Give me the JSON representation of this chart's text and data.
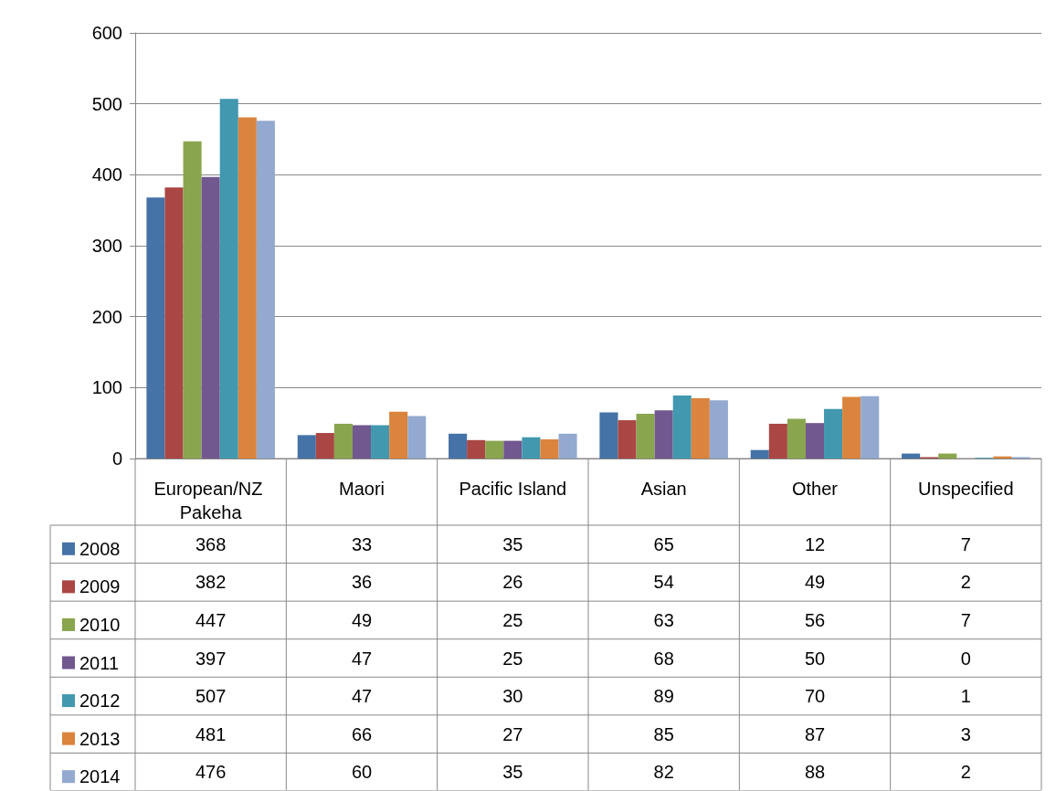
{
  "chart_data": {
    "type": "bar",
    "categories": [
      "European/NZ Pakeha",
      "Maori",
      "Pacific Island",
      "Asian",
      "Other",
      "Unspecified"
    ],
    "series": [
      {
        "name": "2008",
        "color": "#4572a7",
        "values": [
          368,
          33,
          35,
          65,
          12,
          7
        ]
      },
      {
        "name": "2009",
        "color": "#aa4643",
        "values": [
          382,
          36,
          26,
          54,
          49,
          2
        ]
      },
      {
        "name": "2010",
        "color": "#89a54e",
        "values": [
          447,
          49,
          25,
          63,
          56,
          7
        ]
      },
      {
        "name": "2011",
        "color": "#71588f",
        "values": [
          397,
          47,
          25,
          68,
          50,
          0
        ]
      },
      {
        "name": "2012",
        "color": "#4198af",
        "values": [
          507,
          47,
          30,
          89,
          70,
          1
        ]
      },
      {
        "name": "2013",
        "color": "#db843d",
        "values": [
          481,
          66,
          27,
          85,
          87,
          3
        ]
      },
      {
        "name": "2014",
        "color": "#93a9cf",
        "values": [
          476,
          60,
          35,
          82,
          88,
          2
        ]
      }
    ],
    "ylim": [
      0,
      600
    ],
    "yticks": [
      0,
      100,
      200,
      300,
      400,
      500,
      600
    ],
    "grid": "y",
    "legend": "bottom left",
    "data_labels": true
  }
}
